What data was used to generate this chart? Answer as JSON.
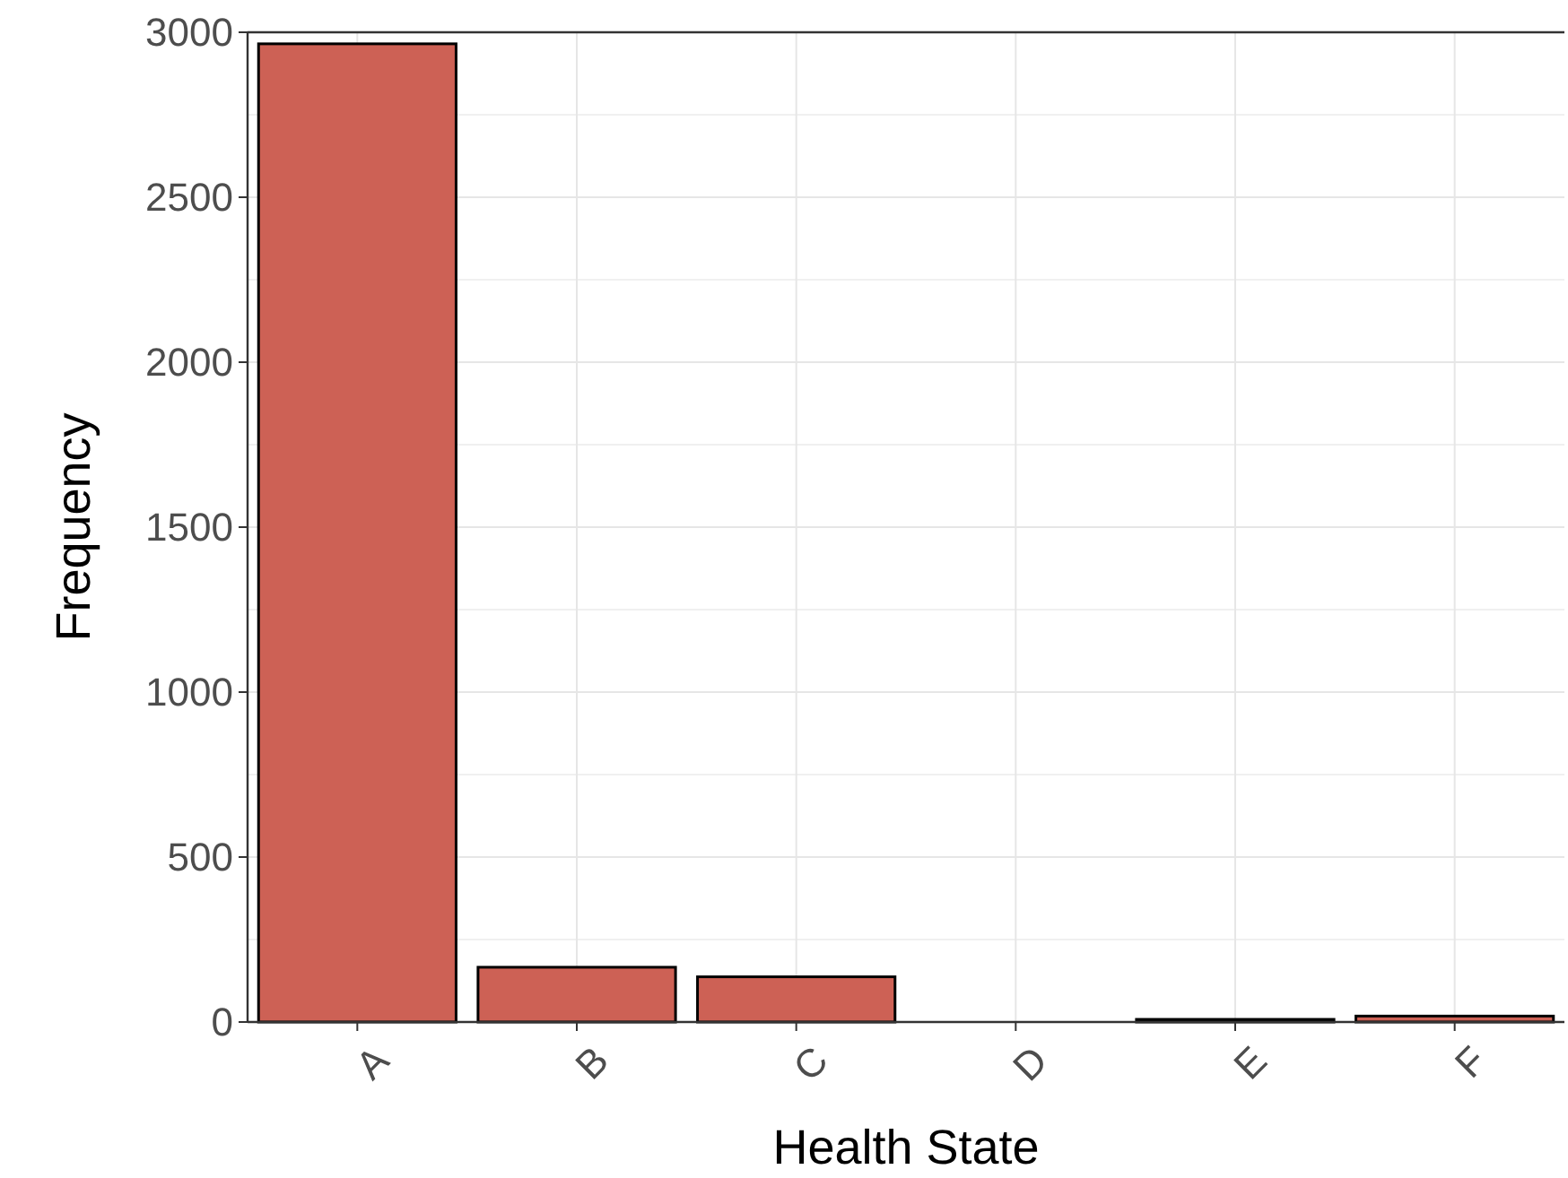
{
  "chart_data": {
    "type": "bar",
    "xlabel": "Health State",
    "ylabel": "Frequency",
    "categories": [
      "A",
      "B",
      "C",
      "D",
      "E",
      "F"
    ],
    "values": [
      2965,
      166,
      137,
      0,
      8,
      18
    ],
    "color": "#cd6155",
    "ylim": [
      0,
      3000
    ],
    "yticks": [
      0,
      500,
      1000,
      1500,
      2000,
      2500,
      3000
    ],
    "grid": true
  }
}
